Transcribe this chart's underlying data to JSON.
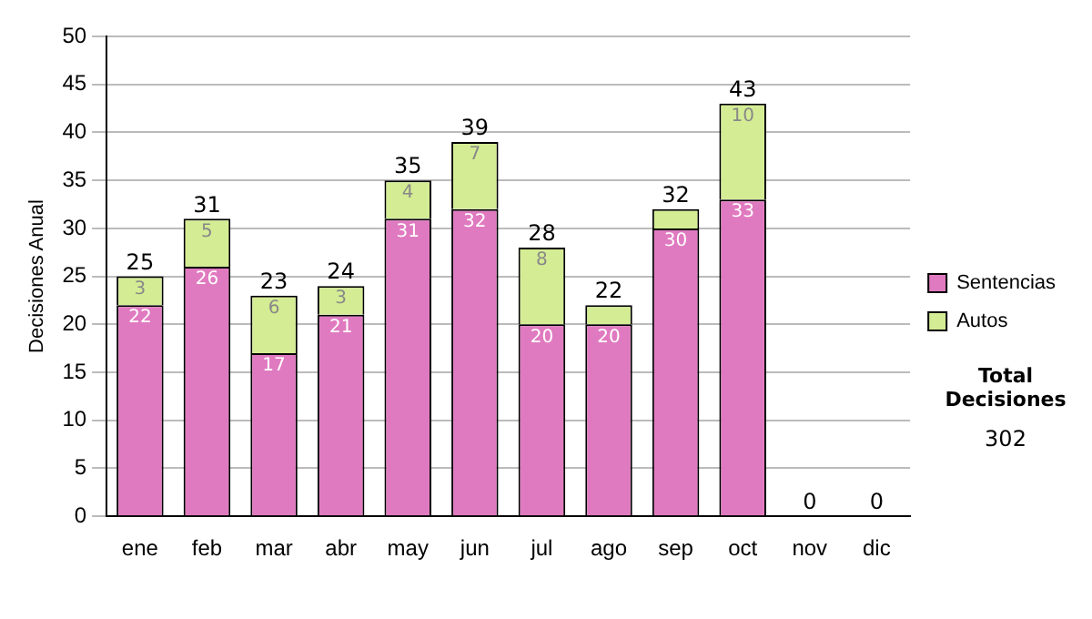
{
  "chart_data": {
    "type": "bar",
    "stacked": true,
    "ylabel": "Decisiones Anual",
    "categories": [
      "ene",
      "feb",
      "mar",
      "abr",
      "may",
      "jun",
      "jul",
      "ago",
      "sep",
      "oct",
      "nov",
      "dic"
    ],
    "series": [
      {
        "name": "Sentencias",
        "color": "#e07ac0",
        "values": [
          22,
          26,
          17,
          21,
          31,
          32,
          20,
          20,
          30,
          33,
          0,
          0
        ],
        "value_labels": [
          "22",
          "26",
          "17",
          "21",
          "31",
          "32",
          "20",
          "20",
          "30",
          "33",
          null,
          null
        ]
      },
      {
        "name": "Autos",
        "color": "#d4ec94",
        "values": [
          3,
          5,
          6,
          3,
          4,
          7,
          8,
          2,
          2,
          10,
          0,
          0
        ],
        "value_labels": [
          "3",
          "5",
          "6",
          "3",
          "4",
          "7",
          "8",
          null,
          null,
          "10",
          null,
          null
        ]
      }
    ],
    "totals": [
      "25",
      "31",
      "23",
      "24",
      "35",
      "39",
      "28",
      "22",
      "32",
      "43",
      "0",
      "0"
    ],
    "ylim": [
      0,
      50
    ],
    "yticks": [
      0,
      5,
      10,
      15,
      20,
      25,
      30,
      35,
      40,
      45,
      50
    ],
    "grid": "y",
    "legend": "right",
    "annotations": [
      "Total Decisiones",
      "302"
    ]
  }
}
